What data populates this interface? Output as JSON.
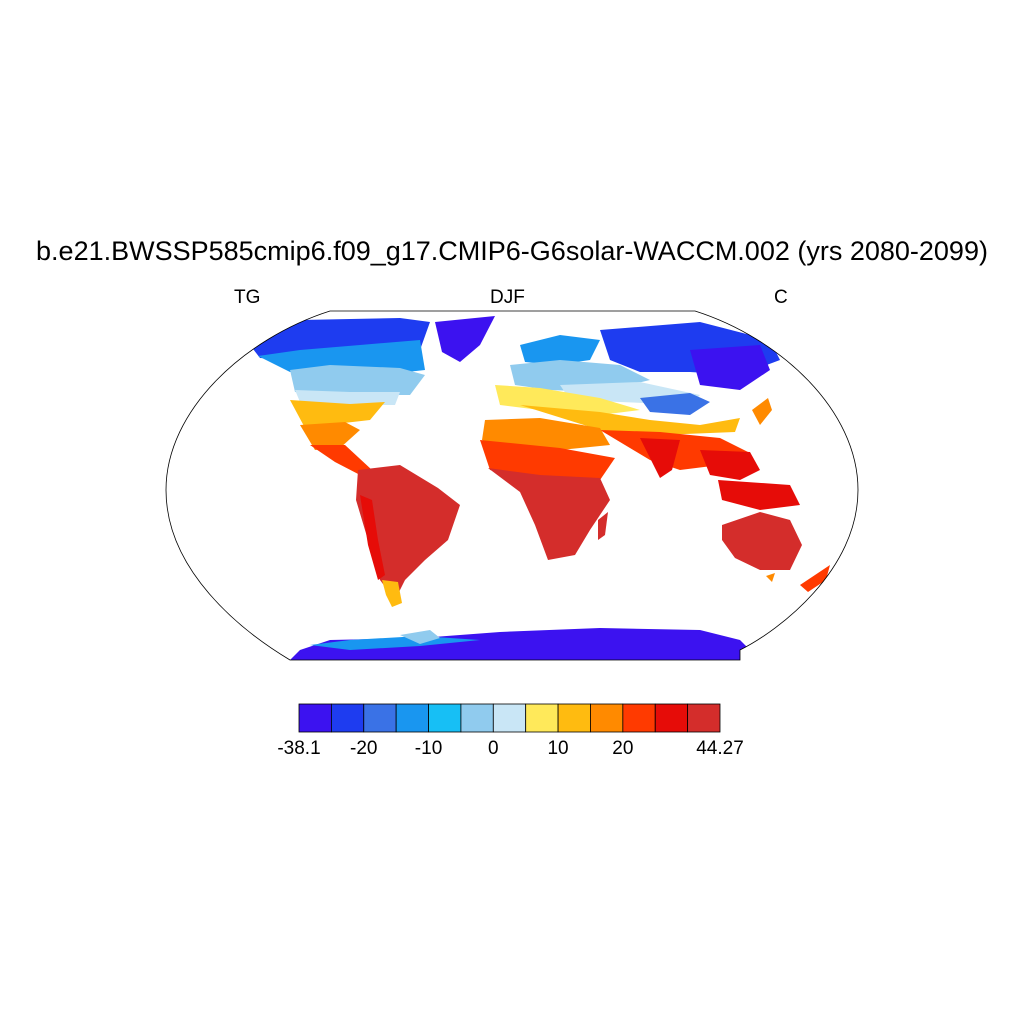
{
  "header": {
    "title": "b.e21.BWSSP585cmip6.f09_g17.CMIP6-G6solar-WACCM.002 (yrs 2080-2099)",
    "left_label": "TG",
    "center_label": "DJF",
    "right_label": "C"
  },
  "chart_data": {
    "type": "heatmap",
    "title": "b.e21.BWSSP585cmip6.f09_g17.CMIP6-G6solar-WACCM.002 (yrs 2080-2099)",
    "variable": "TG",
    "season": "DJF",
    "units": "C",
    "projection": "Robinson",
    "colorbar": {
      "min": -38.1,
      "max": 44.27,
      "tick_labels": [
        "-38.1",
        "-20",
        "-10",
        "0",
        "10",
        "20",
        "44.27"
      ],
      "colors": [
        "#3c12f0",
        "#1e3cf0",
        "#3a72e6",
        "#1996f0",
        "#17bff5",
        "#90cbee",
        "#c9e6f6",
        "#ffe95a",
        "#ffbb10",
        "#ff8a00",
        "#ff3a00",
        "#e60c08",
        "#d42d2b"
      ]
    }
  }
}
